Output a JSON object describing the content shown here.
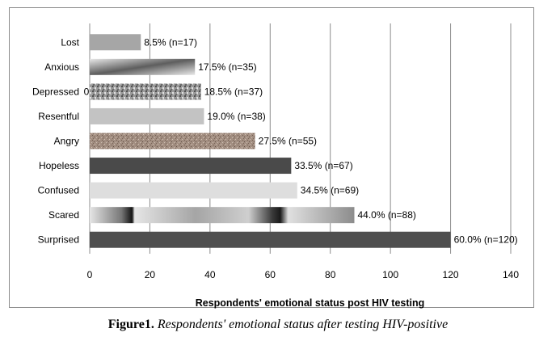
{
  "chart_data": {
    "type": "bar",
    "orientation": "horizontal",
    "categories": [
      "Lost",
      "Anxious",
      "Depressed",
      "Resentful",
      "Angry",
      "Hopeless",
      "Confused",
      "Scared",
      "Surprised"
    ],
    "values": [
      17,
      35,
      37,
      38,
      55,
      67,
      69,
      88,
      120
    ],
    "data_labels": [
      "8.5% (n=17)",
      "17.5% (n=35)",
      "18.5% (n=37)",
      "19.0% (n=38)",
      "27.5% (n=55)",
      "33.5% (n=67)",
      "34.5% (n=69)",
      "44.0% (n=88)",
      "60.0% (n=120)"
    ],
    "xlabel": "Respondents' emotional status post HIV testing",
    "ylabel": "",
    "xlim": [
      0,
      140
    ],
    "xticks": [
      0,
      20,
      40,
      60,
      80,
      100,
      120,
      140
    ],
    "grid": "vertical",
    "legend": "none",
    "bar_colors": [
      "#a6a6a6",
      "#9a9a9a",
      "#8f8f8f",
      "#c3c3c3",
      "#a08c80",
      "#4a4a4a",
      "#dedede",
      "#b5b5b5",
      "#4f4f4f"
    ],
    "stray_label": "0"
  },
  "caption": {
    "bold": "Figure1.",
    "italic": "Respondents' emotional status after testing HIV-positive"
  }
}
